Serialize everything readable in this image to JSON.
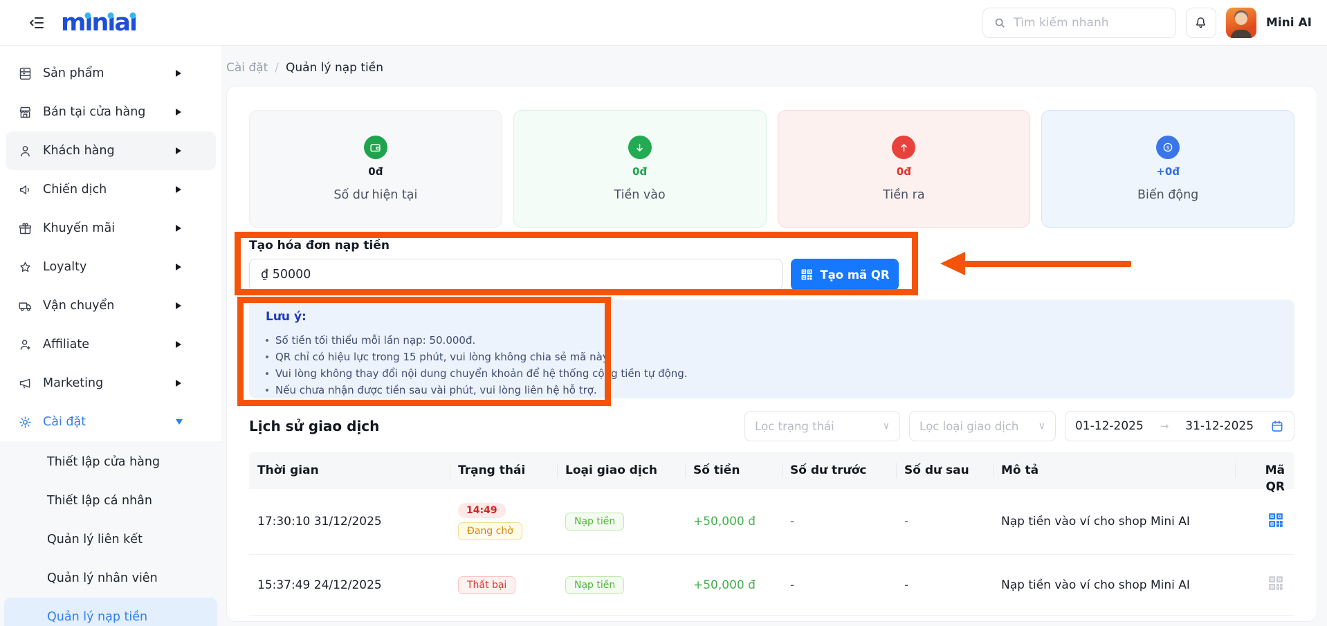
{
  "header": {
    "logo_text": "miniai",
    "search_placeholder": "Tìm kiếm nhanh",
    "user_name": "Mini AI"
  },
  "breadcrumb": {
    "parent": "Cài đặt",
    "separator": "/",
    "current": "Quản lý nạp tiền"
  },
  "sidebar": {
    "items": [
      {
        "label": "Sản phẩm",
        "icon": "product-icon"
      },
      {
        "label": "Bán tại cửa hàng",
        "icon": "store-icon"
      },
      {
        "label": "Khách hàng",
        "icon": "customer-icon"
      },
      {
        "label": "Chiến dịch",
        "icon": "campaign-icon"
      },
      {
        "label": "Khuyến mãi",
        "icon": "gift-icon"
      },
      {
        "label": "Loyalty",
        "icon": "star-icon"
      },
      {
        "label": "Vận chuyển",
        "icon": "shipping-icon"
      },
      {
        "label": "Affiliate",
        "icon": "affiliate-icon"
      },
      {
        "label": "Marketing",
        "icon": "megaphone-icon"
      },
      {
        "label": "Cài đặt",
        "icon": "gear-icon"
      }
    ],
    "settings_children": [
      {
        "label": "Thiết lập cửa hàng"
      },
      {
        "label": "Thiết lập cá nhân"
      },
      {
        "label": "Quản lý liên kết"
      },
      {
        "label": "Quản lý nhân viên"
      },
      {
        "label": "Quản lý nạp tiền"
      }
    ],
    "active_child": "Quản lý nạp tiền"
  },
  "stats": [
    {
      "label": "Số dư hiện tại",
      "value": "0đ",
      "icon": "wallet-icon",
      "accent": "#1fa34d"
    },
    {
      "label": "Tiền vào",
      "value": "0đ",
      "icon": "arrow-down-icon",
      "accent": "#22ab52"
    },
    {
      "label": "Tiền ra",
      "value": "0đ",
      "icon": "arrow-up-icon",
      "accent": "#e8423c"
    },
    {
      "label": "Biến động",
      "value": "+0đ",
      "icon": "coin-icon",
      "accent": "#3b76e9"
    }
  ],
  "deposit_form": {
    "title": "Tạo hóa đơn nạp tiền",
    "amount_value": "₫ 50000",
    "qr_button_label": "Tạo mã QR"
  },
  "notes": {
    "title": "Lưu ý:",
    "items": [
      {
        "text": "Số tiền tối thiểu mỗi lần nạp: 50.000đ."
      },
      {
        "text": "QR chỉ có hiệu lực trong 15 phút, vui lòng không chia sẻ mã này."
      },
      {
        "text": "Vui lòng không thay đổi nội dung chuyển khoản để hệ thống cộng tiền tự động."
      },
      {
        "text": "Nếu chưa nhận được tiền sau vài phút, vui lòng liên hệ hỗ trợ."
      }
    ]
  },
  "history": {
    "title": "Lịch sử giao dịch",
    "status_filter_placeholder": "Lọc trạng thái",
    "type_filter_placeholder": "Lọc loại giao dịch",
    "date_from": "01-12-2025",
    "date_to": "31-12-2025",
    "columns": [
      "Thời gian",
      "Trạng thái",
      "Loại giao dịch",
      "Số tiền",
      "Số dư trước",
      "Số dư sau",
      "Mô tả",
      "Mã QR"
    ],
    "rows": [
      {
        "time": "17:30:10 31/12/2025",
        "countdown": "14:49",
        "status": "Đang chờ",
        "type": "Nạp tiền",
        "amount": "+50,000 đ",
        "balance_before": "-",
        "balance_after": "-",
        "description": "Nạp tiền vào ví cho shop Mini AI"
      },
      {
        "time": "15:37:49 24/12/2025",
        "status": "Thất bại",
        "type": "Nạp tiền",
        "amount": "+50,000 đ",
        "balance_before": "-",
        "balance_after": "-",
        "description": "Nạp tiền vào ví cho shop Mini AI"
      }
    ]
  },
  "colors": {
    "accent_blue": "#1677ff",
    "brand_blue": "#1d4fd8",
    "brand_cyan": "#35b5f2",
    "annotation_orange": "#f4540a",
    "success_green": "#44b04d",
    "danger_red": "#e0362c",
    "warning_gold": "#d48806"
  }
}
